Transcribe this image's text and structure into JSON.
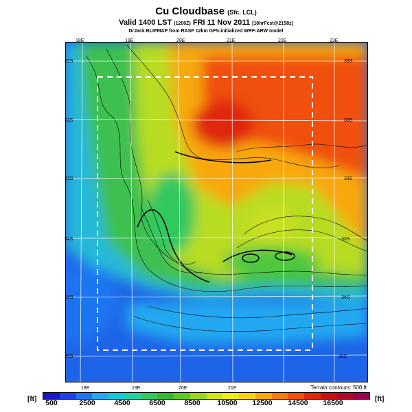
{
  "title": {
    "main": "Cu Cloudbase",
    "main_note": "(Sfc. LCL)"
  },
  "subtitle": {
    "valid": "Valid 1400 LST",
    "valid_note": "(1200Z)",
    "date": "FRI 11 Nov 2011",
    "date_note": "[18hrFcst@2158z]"
  },
  "credit": "DrJack BLIPMAP from RASP 12km GFS-initialized WRF-ARW model",
  "lon_labels_top": [
    "18E",
    "19E",
    "20E",
    "21E",
    "22E",
    "23E"
  ],
  "lon_labels_bottom": [
    "18E",
    "19E",
    "20E",
    "21E"
  ],
  "lat_labels_left": [
    "32S",
    "33S",
    "33S",
    "34S",
    "34S",
    "35S"
  ],
  "lat_labels_right": [
    "33S",
    "33S",
    "33S",
    "33S",
    "34S",
    "35S"
  ],
  "contour_note": "Terrain contours: 500 ft",
  "colorbar": {
    "unit": "[ft]",
    "labels": [
      "500",
      "2500",
      "4500",
      "6500",
      "8500",
      "10500",
      "12500",
      "14500",
      "16500"
    ],
    "colors": [
      "#1818c8",
      "#1f40e6",
      "#1f74f0",
      "#20a8f0",
      "#18c8d8",
      "#20d0a0",
      "#30c860",
      "#38b830",
      "#60c820",
      "#9ad820",
      "#d0e418",
      "#f0ea18",
      "#f8d010",
      "#f8a808",
      "#f87c08",
      "#f05008",
      "#e02808",
      "#c81010",
      "#b00828",
      "#a00050"
    ]
  }
}
